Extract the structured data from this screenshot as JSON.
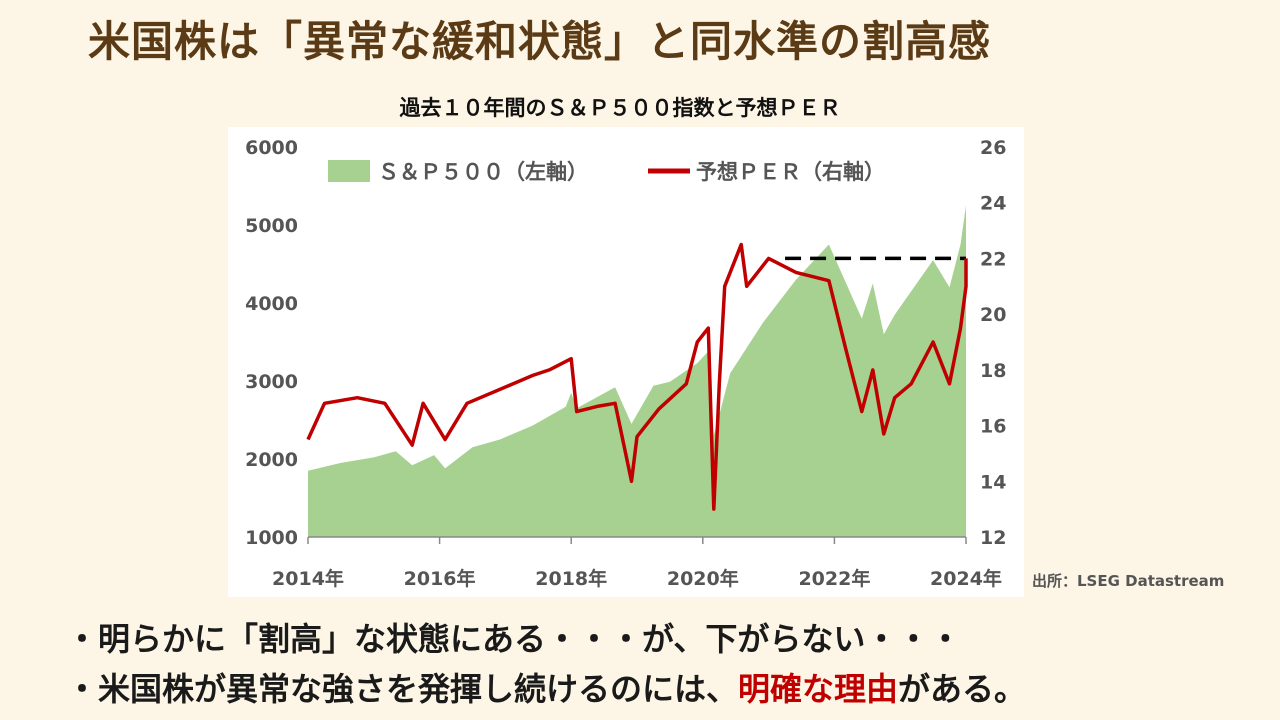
{
  "slide": {
    "headline": "米国株は「異常な緩和状態」と同水準の割高感",
    "source": "出所：LSEG Datastream",
    "bullets": [
      {
        "before": "・明らかに「割高」な状態にある・・・が、下がらない・・・",
        "emphasis": "",
        "after": ""
      },
      {
        "before": "・米国株が異常な強さを発揮し続けるのには、",
        "emphasis": "明確な理由",
        "after": "がある。"
      }
    ]
  },
  "colors": {
    "background": "#fdf6e6",
    "headline": "#5b3a16",
    "sp500_fill": "#a6d191",
    "per_line": "#c00000",
    "emphasis": "#c00000",
    "reference_line": "#000000"
  },
  "chart_data": {
    "type": "area",
    "title": "過去１０年間のＳ＆Ｐ５００指数と予想ＰＥＲ",
    "x_range": [
      "2014-01",
      "2024-01"
    ],
    "x_ticks": [
      "2014年",
      "2016年",
      "2018年",
      "2020年",
      "2022年",
      "2024年"
    ],
    "y_left": {
      "range": [
        1000,
        6000
      ],
      "ticks": [
        "1000",
        "2000",
        "3000",
        "4000",
        "5000",
        "6000"
      ]
    },
    "y_right": {
      "range": [
        12,
        26
      ],
      "ticks": [
        "12",
        "14",
        "16",
        "18",
        "20",
        "22",
        "24",
        "26"
      ]
    },
    "legend": {
      "position": "top",
      "entries": [
        "Ｓ＆Ｐ５００（左軸）",
        "予想ＰＥＲ（右軸）"
      ]
    },
    "grid": false,
    "series": [
      {
        "name": "Ｓ＆Ｐ５００（左軸）",
        "type": "area",
        "axis": "left",
        "x": [
          "2014-01",
          "2014-07",
          "2015-01",
          "2015-05",
          "2015-08",
          "2015-12",
          "2016-02",
          "2016-07",
          "2016-12",
          "2017-06",
          "2017-12",
          "2018-01",
          "2018-02",
          "2018-09",
          "2018-12",
          "2019-04",
          "2019-07",
          "2019-12",
          "2020-02",
          "2020-03",
          "2020-06",
          "2020-12",
          "2021-06",
          "2021-12",
          "2022-06",
          "2022-08",
          "2022-10",
          "2022-12",
          "2023-07",
          "2023-10",
          "2023-12",
          "2024-03",
          "2024-07"
        ],
        "values": [
          1850,
          1950,
          2020,
          2100,
          1920,
          2050,
          1880,
          2150,
          2250,
          2430,
          2670,
          2850,
          2650,
          2920,
          2450,
          2940,
          2990,
          3230,
          3380,
          2300,
          3100,
          3750,
          4300,
          4750,
          3800,
          4250,
          3600,
          3850,
          4550,
          4200,
          4750,
          5250,
          5650
        ]
      },
      {
        "name": "予想ＰＥＲ（右軸）",
        "type": "line",
        "axis": "right",
        "x": [
          "2014-01",
          "2014-04",
          "2014-10",
          "2015-03",
          "2015-08",
          "2015-10",
          "2016-02",
          "2016-06",
          "2016-12",
          "2017-06",
          "2017-09",
          "2018-01",
          "2018-02",
          "2018-06",
          "2018-09",
          "2018-12",
          "2019-01",
          "2019-05",
          "2019-10",
          "2019-12",
          "2020-02",
          "2020-03",
          "2020-04",
          "2020-05",
          "2020-08",
          "2020-09",
          "2021-01",
          "2021-06",
          "2021-12",
          "2022-03",
          "2022-06",
          "2022-08",
          "2022-10",
          "2022-12",
          "2023-03",
          "2023-07",
          "2023-10",
          "2023-12",
          "2024-03",
          "2024-07"
        ],
        "values": [
          15.5,
          16.8,
          17.0,
          16.8,
          15.3,
          16.8,
          15.5,
          16.8,
          17.3,
          17.8,
          18.0,
          18.4,
          16.5,
          16.7,
          16.8,
          14.0,
          15.6,
          16.6,
          17.5,
          19.0,
          19.5,
          13.0,
          17.5,
          21.0,
          22.5,
          21.0,
          22.0,
          21.5,
          21.2,
          18.8,
          16.5,
          18.0,
          15.7,
          17.0,
          17.5,
          19.0,
          17.5,
          19.5,
          21.0,
          22.0
        ]
      }
    ],
    "annotations": [
      {
        "type": "dashed-horizontal",
        "axis": "right",
        "value": 22.0,
        "x_from": "2021-04",
        "x_to": "2024-02"
      }
    ]
  }
}
